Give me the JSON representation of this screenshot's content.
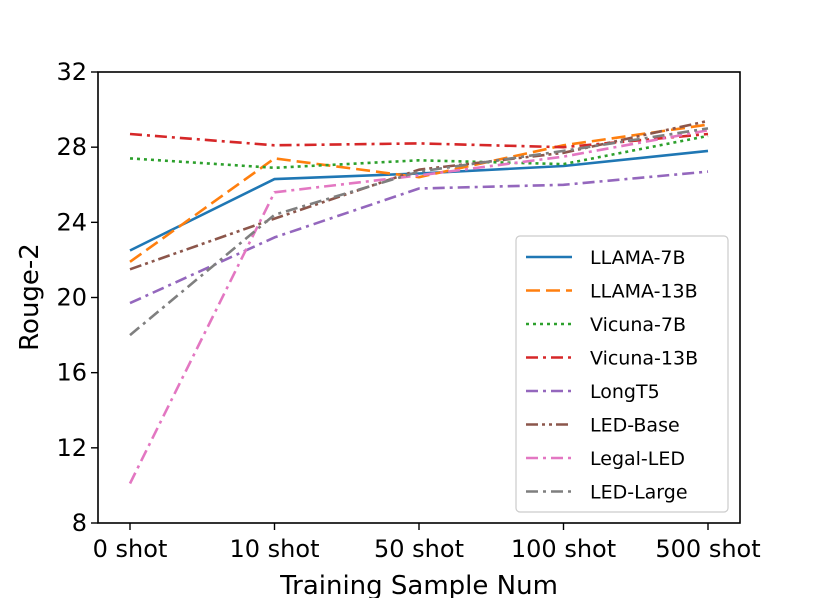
{
  "chart_data": {
    "type": "line",
    "title": "",
    "xlabel": "Training Sample Num",
    "ylabel": "Rouge-2",
    "categories": [
      "0 shot",
      "10 shot",
      "50 shot",
      "100 shot",
      "500 shot"
    ],
    "ylim": [
      8,
      32
    ],
    "yticks": [
      8,
      12,
      16,
      20,
      24,
      28,
      32
    ],
    "grid": false,
    "legend_position": "lower-right",
    "series": [
      {
        "name": "LLAMA-7B",
        "color": "#1f77b4",
        "dash": "solid",
        "values": [
          22.5,
          26.3,
          26.6,
          27.0,
          27.8
        ]
      },
      {
        "name": "LLAMA-13B",
        "color": "#ff7f0e",
        "dash": "dashed",
        "values": [
          21.9,
          27.4,
          26.4,
          28.1,
          29.2
        ]
      },
      {
        "name": "Vicuna-7B",
        "color": "#2ca02c",
        "dash": "dotted",
        "values": [
          27.4,
          26.9,
          27.3,
          27.1,
          28.6
        ]
      },
      {
        "name": "Vicuna-13B",
        "color": "#d62728",
        "dash": "dashdot",
        "values": [
          28.7,
          28.1,
          28.2,
          28.0,
          28.7
        ]
      },
      {
        "name": "LongT5",
        "color": "#9467bd",
        "dash": "dashdot",
        "values": [
          19.7,
          23.2,
          25.8,
          26.0,
          26.7
        ]
      },
      {
        "name": "LED-Base",
        "color": "#8c564b",
        "dash": "dashdotdot",
        "values": [
          21.5,
          24.2,
          26.8,
          27.7,
          29.4
        ]
      },
      {
        "name": "Legal-LED",
        "color": "#e377c2",
        "dash": "dashdot",
        "values": [
          10.1,
          25.6,
          26.5,
          27.5,
          28.9
        ]
      },
      {
        "name": "LED-Large",
        "color": "#7f7f7f",
        "dash": "dashdot",
        "values": [
          18.0,
          24.4,
          26.7,
          27.8,
          29.0
        ]
      }
    ]
  }
}
